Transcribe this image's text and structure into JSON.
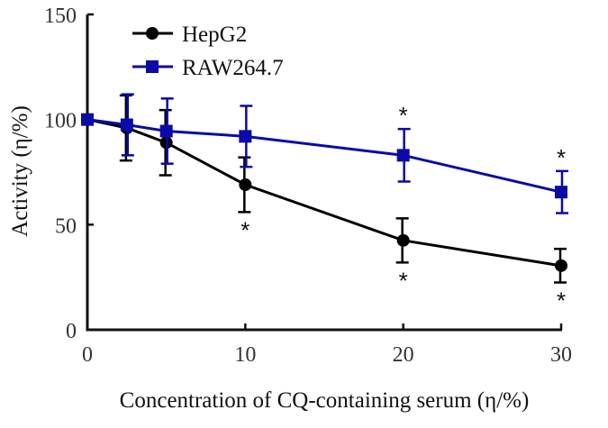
{
  "chart_data": {
    "type": "line",
    "xlabel": "Concentration of CQ-containing serum (η/%)",
    "ylabel": "Activity (η/%)",
    "xlim": [
      0,
      30
    ],
    "ylim": [
      0,
      150
    ],
    "x_ticks": [
      "0",
      "10",
      "20",
      "30"
    ],
    "y_ticks": [
      "0",
      "50",
      "100",
      "150"
    ],
    "x_tick_values": [
      0,
      10,
      20,
      30
    ],
    "y_tick_values": [
      0,
      50,
      100,
      150
    ],
    "grid": false,
    "legend_position": "top-left",
    "significance_marker": "*",
    "series": [
      {
        "name": "HepG2",
        "color": "#000000",
        "marker": "circle",
        "x": [
          0,
          2.5,
          5,
          10,
          20,
          30
        ],
        "y": [
          100,
          96,
          89,
          69,
          42.5,
          30.5
        ],
        "error": [
          0,
          15.5,
          15.5,
          13,
          10.5,
          8
        ],
        "significant": [
          false,
          false,
          false,
          true,
          true,
          true
        ],
        "significant_side": "below"
      },
      {
        "name": "RAW264.7",
        "color": "#0a0aa8",
        "marker": "square",
        "x": [
          0,
          2.5,
          5,
          10,
          20,
          30
        ],
        "y": [
          100,
          97.5,
          94.5,
          92,
          83,
          65.5
        ],
        "error": [
          0,
          14.5,
          15.5,
          14.5,
          12.5,
          10
        ],
        "significant": [
          false,
          false,
          false,
          false,
          true,
          true
        ],
        "significant_side": "above"
      }
    ]
  }
}
